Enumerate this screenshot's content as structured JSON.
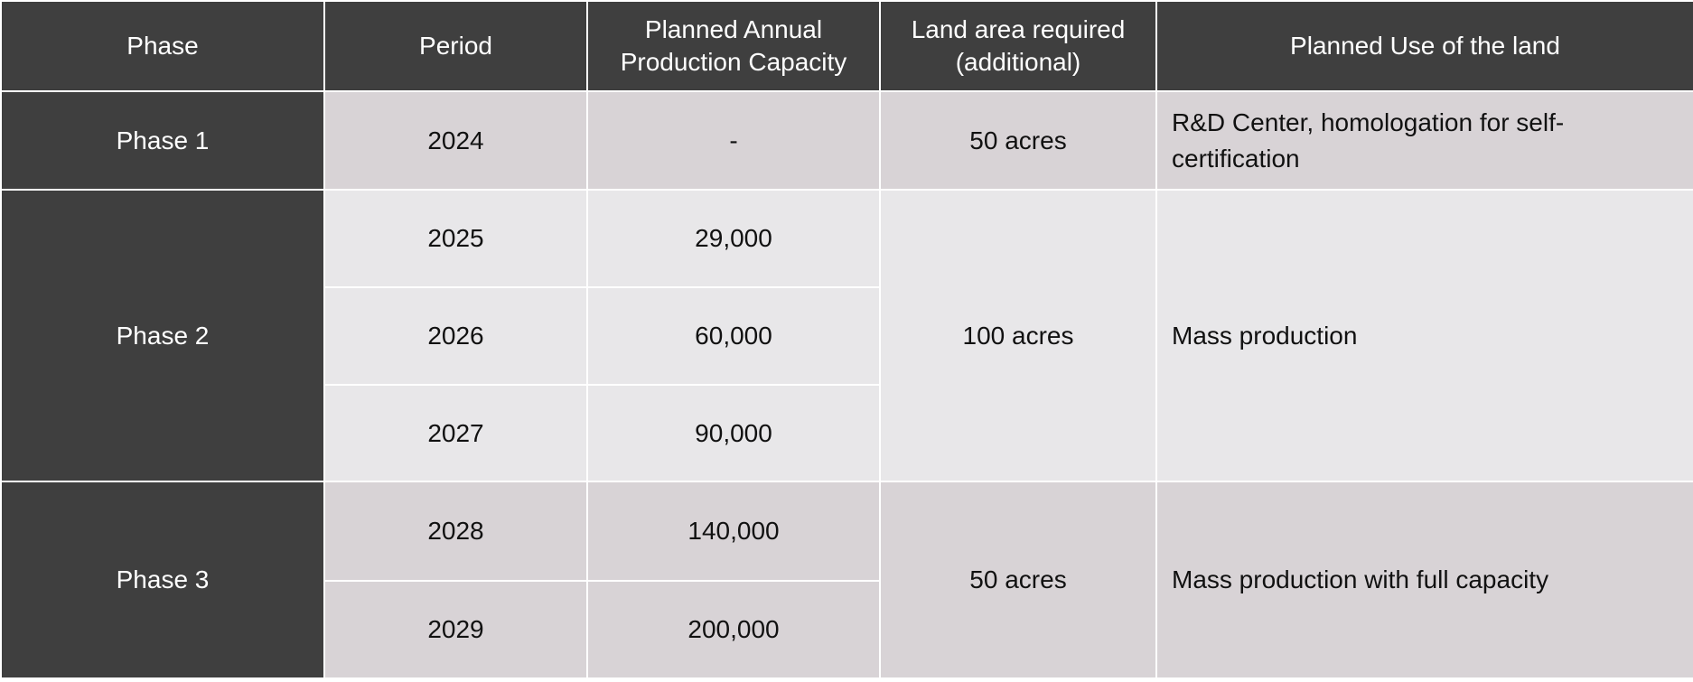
{
  "columns": [
    "Phase",
    "Period",
    "Planned Annual Production Capacity",
    "Land area required (additional)",
    "Planned Use of the land"
  ],
  "phases": [
    {
      "name": "Phase 1",
      "land": "50 acres",
      "use": "R&D Center, homologation for self-certification",
      "periods": [
        {
          "year": "2024",
          "capacity": "-"
        }
      ]
    },
    {
      "name": "Phase 2",
      "land": "100 acres",
      "use": "Mass production",
      "periods": [
        {
          "year": "2025",
          "capacity": "29,000"
        },
        {
          "year": "2026",
          "capacity": "60,000"
        },
        {
          "year": "2027",
          "capacity": "90,000"
        }
      ]
    },
    {
      "name": "Phase 3",
      "land": "50 acres",
      "use": "Mass production with full capacity",
      "periods": [
        {
          "year": "2028",
          "capacity": "140,000"
        },
        {
          "year": "2029",
          "capacity": "200,000"
        }
      ]
    }
  ],
  "colors": {
    "header_bg": "#3f3f3f",
    "header_text": "#ffffff",
    "row_dark": "#d8d3d6",
    "row_light": "#e8e7e9"
  }
}
